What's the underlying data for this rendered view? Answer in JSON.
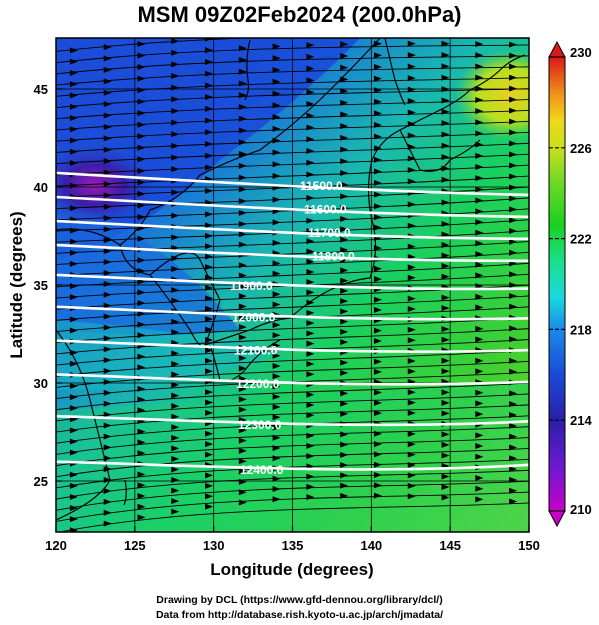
{
  "title": "MSM 09Z02Feb2024 (200.0hPa)",
  "xaxis": {
    "label": "Longitude (degrees)",
    "ticks": [
      "120",
      "125",
      "130",
      "135",
      "140",
      "145",
      "150"
    ],
    "range": [
      120,
      150
    ]
  },
  "yaxis": {
    "label": "Latitude  (degrees)",
    "ticks": [
      "25",
      "30",
      "35",
      "40",
      "45"
    ],
    "range": [
      22.4,
      47.6
    ]
  },
  "colorbar": {
    "ticks": [
      "210",
      "214",
      "218",
      "222",
      "226",
      "230"
    ],
    "range": [
      210,
      230
    ],
    "colors": [
      "#c800c8",
      "#7a1fc8",
      "#2a1fa8",
      "#1a3fd8",
      "#1a8ae8",
      "#1ad8e0",
      "#1ae08a",
      "#1ad020",
      "#5ad82a",
      "#a8e020",
      "#e8d81a",
      "#f0a01a",
      "#e8501a",
      "#d81a1a"
    ]
  },
  "contours": [
    {
      "label": "11500.0",
      "lat": 40.0
    },
    {
      "label": "11600.0",
      "lat": 38.8
    },
    {
      "label": "11700.0",
      "lat": 37.6
    },
    {
      "label": "11800.0",
      "lat": 36.4
    },
    {
      "label": "11900.0",
      "lat": 34.9
    },
    {
      "label": "12000.0",
      "lat": 33.3
    },
    {
      "label": "12100.0",
      "lat": 31.6
    },
    {
      "label": "12200.0",
      "lat": 29.9
    },
    {
      "label": "12300.0",
      "lat": 27.8
    },
    {
      "label": "12400.0",
      "lat": 25.5
    }
  ],
  "credits": {
    "line1": "Drawing by DCL (https://www.gfd-dennou.org/library/dcl/)",
    "line2": "Data from http://database.rish.kyoto-u.ac.jp/arch/jmadata/"
  }
}
